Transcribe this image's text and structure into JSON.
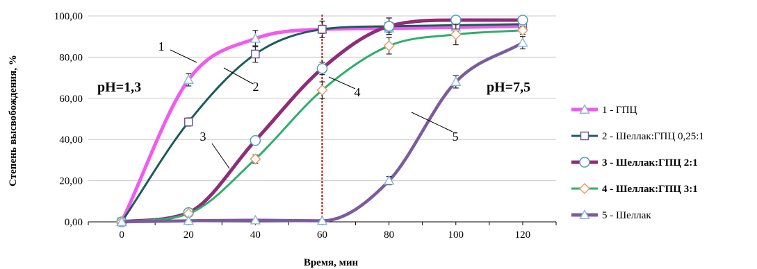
{
  "chart_data": {
    "type": "line",
    "title": "",
    "xlabel": "Время, мин",
    "ylabel": "Степень высвобождения, %",
    "x": [
      0,
      20,
      40,
      60,
      80,
      100,
      120
    ],
    "xlim": [
      -10,
      130
    ],
    "ylim": [
      0,
      100
    ],
    "yticks": [
      "0,00",
      "20,00",
      "40,00",
      "60,00",
      "80,00",
      "100,00"
    ],
    "xticks": [
      "0",
      "20",
      "40",
      "60",
      "80",
      "100",
      "120"
    ],
    "grid": "horizontal",
    "legend_position": "right",
    "vline_x": 60,
    "vline_color": "#c0392b",
    "annotations": {
      "ph_left": "pH=1,3",
      "ph_right": "pH=7,5"
    },
    "series": [
      {
        "name": "1 - ГПЦ",
        "label": "1",
        "color": "#f05bf0",
        "marker": "triangle",
        "bold": false,
        "values": [
          0,
          69,
          89,
          93.5,
          94,
          94.5,
          95
        ],
        "errors": [
          0,
          3,
          4,
          2,
          2,
          2,
          2
        ]
      },
      {
        "name": "2 - Шеллак:ГПЦ  0,25:1",
        "label": "2",
        "color": "#1a5c5a",
        "marker": "square",
        "bold": false,
        "values": [
          0,
          48.5,
          81.5,
          93.5,
          95,
          95.5,
          96
        ],
        "errors": [
          0,
          2,
          4,
          4,
          4,
          3,
          3
        ]
      },
      {
        "name": "3 - Шеллак:ГПЦ 2:1",
        "label": "3",
        "color": "#8e2d79",
        "marker": "circle",
        "bold": true,
        "values": [
          0,
          4.5,
          39.5,
          74.5,
          95,
          98,
          98
        ],
        "errors": [
          0,
          1,
          2,
          3,
          4,
          1.5,
          1
        ]
      },
      {
        "name": "4 - Шеллак:ГПЦ 3:1",
        "label": "4",
        "color": "#2eae6e",
        "marker": "diamond",
        "bold": true,
        "values": [
          0,
          4,
          30.5,
          64,
          85.5,
          91,
          93
        ],
        "errors": [
          0,
          1,
          2,
          4,
          4,
          5,
          2
        ]
      },
      {
        "name": "5 - Шеллак",
        "label": "5",
        "color": "#7a5c9e",
        "marker": "triangle",
        "bold": false,
        "values": [
          0,
          0.5,
          0.8,
          0.5,
          20,
          68,
          87
        ],
        "errors": [
          0,
          0.5,
          0.5,
          0.5,
          2,
          3,
          3
        ]
      }
    ]
  }
}
